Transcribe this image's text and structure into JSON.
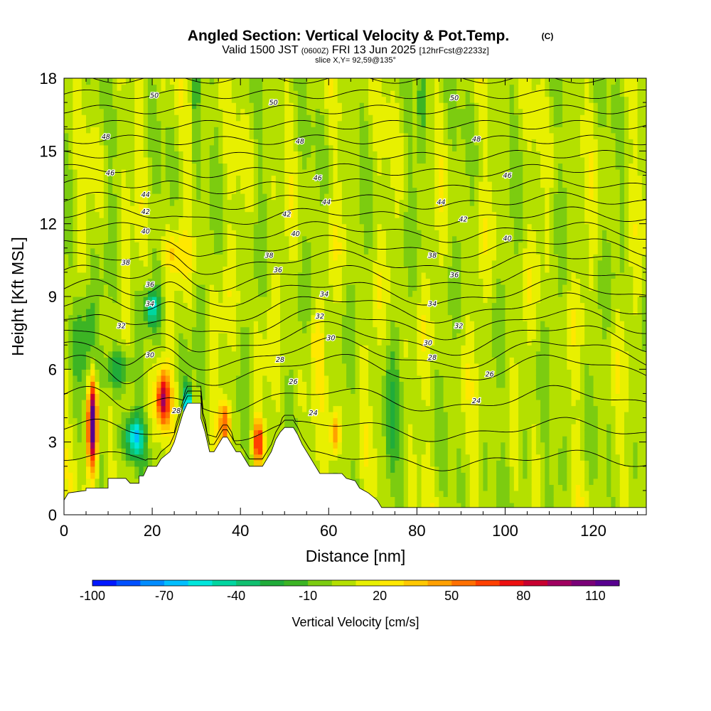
{
  "colors": {
    "palette": [
      "#0018ff",
      "#0050ff",
      "#008cff",
      "#00bfff",
      "#00e6dc",
      "#00d6a0",
      "#10c070",
      "#20ac3a",
      "#3cb424",
      "#7ccc10",
      "#b4e000",
      "#e8f000",
      "#ffe800",
      "#ffc800",
      "#ffa000",
      "#ff7000",
      "#ff4000",
      "#ee1010",
      "#c80030",
      "#a00060",
      "#7a0078",
      "#580090"
    ],
    "terrain": "#ffffff",
    "contour": "#000000"
  },
  "chart_data": {
    "type": "heatmap",
    "title": "Angled Section: Vertical Velocity & Pot.Temp.",
    "title_tag": "(C)",
    "subtitle_parts": [
      "Valid 1500 JST",
      "(0600Z)",
      "FRI 13 Jun 2025",
      "[12hrFcst@2233z]"
    ],
    "slice_label": "slice X,Y= 92,59@135°",
    "xlabel": "Distance [nm]",
    "ylabel": "Height [Kft MSL]",
    "xlim": [
      0,
      132
    ],
    "ylim": [
      0,
      18
    ],
    "x_ticks": [
      0,
      20,
      40,
      60,
      80,
      100,
      120
    ],
    "y_ticks": [
      0,
      3,
      6,
      9,
      12,
      15,
      18
    ],
    "colorbar": {
      "label": "Vertical Velocity [cm/s]",
      "min": -100,
      "max": 120,
      "step": 10,
      "tick_labels": [
        -100,
        -70,
        -40,
        -10,
        20,
        50,
        80,
        110
      ]
    },
    "terrain_height": [
      [
        0,
        0.6
      ],
      [
        1,
        0.9
      ],
      [
        5,
        1.0
      ],
      [
        5,
        1.1
      ],
      [
        10,
        1.1
      ],
      [
        10,
        1.5
      ],
      [
        14,
        1.5
      ],
      [
        15,
        1.3
      ],
      [
        17,
        1.3
      ],
      [
        17,
        1.6
      ],
      [
        18,
        1.6
      ],
      [
        19,
        2.0
      ],
      [
        21,
        2.0
      ],
      [
        22,
        2.3
      ],
      [
        24,
        2.6
      ],
      [
        25,
        3.0
      ],
      [
        26,
        3.6
      ],
      [
        27,
        4.2
      ],
      [
        28,
        4.6
      ],
      [
        29,
        4.6
      ],
      [
        31,
        4.6
      ],
      [
        31,
        4.0
      ],
      [
        32,
        3.4
      ],
      [
        33,
        2.6
      ],
      [
        34,
        2.6
      ],
      [
        35,
        2.9
      ],
      [
        36,
        3.2
      ],
      [
        37,
        3.2
      ],
      [
        38,
        2.9
      ],
      [
        39,
        2.6
      ],
      [
        40,
        2.6
      ],
      [
        41,
        2.3
      ],
      [
        42,
        2.0
      ],
      [
        44,
        2.0
      ],
      [
        45,
        2.0
      ],
      [
        46,
        2.3
      ],
      [
        47,
        2.6
      ],
      [
        48,
        3.1
      ],
      [
        49,
        3.4
      ],
      [
        50,
        3.6
      ],
      [
        52,
        3.6
      ],
      [
        53,
        3.3
      ],
      [
        54,
        2.9
      ],
      [
        55,
        2.6
      ],
      [
        56,
        2.3
      ],
      [
        57,
        2.0
      ],
      [
        58,
        1.7
      ],
      [
        60,
        1.7
      ],
      [
        61,
        1.7
      ],
      [
        62,
        1.7
      ],
      [
        63,
        1.7
      ],
      [
        64,
        1.5
      ],
      [
        66,
        1.4
      ],
      [
        67,
        1.1
      ],
      [
        69,
        0.9
      ],
      [
        71,
        0.6
      ],
      [
        72,
        0.3
      ],
      [
        132,
        0.3
      ]
    ],
    "theta_contour_labels": [
      {
        "value": 50,
        "at": [
          [
            20.5,
            17.3
          ],
          [
            47.5,
            17.0
          ],
          [
            88.5,
            17.2
          ]
        ]
      },
      {
        "value": 48,
        "at": [
          [
            9.5,
            15.6
          ],
          [
            53.5,
            15.4
          ],
          [
            93.5,
            15.5
          ]
        ]
      },
      {
        "value": 46,
        "at": [
          [
            10.5,
            14.1
          ],
          [
            57.5,
            13.9
          ],
          [
            100.5,
            14.0
          ]
        ]
      },
      {
        "value": 44,
        "at": [
          [
            18.5,
            13.2
          ],
          [
            59.5,
            12.9
          ],
          [
            85.5,
            12.9
          ]
        ]
      },
      {
        "value": 42,
        "at": [
          [
            18.5,
            12.5
          ],
          [
            50.5,
            12.4
          ],
          [
            90.5,
            12.2
          ]
        ]
      },
      {
        "value": 40,
        "at": [
          [
            18.5,
            11.7
          ],
          [
            52.5,
            11.6
          ],
          [
            100.5,
            11.4
          ]
        ]
      },
      {
        "value": 38,
        "at": [
          [
            14.0,
            10.4
          ],
          [
            46.5,
            10.7
          ],
          [
            83.5,
            10.7
          ]
        ]
      },
      {
        "value": 36,
        "at": [
          [
            19.5,
            9.5
          ],
          [
            48.5,
            10.1
          ],
          [
            88.5,
            9.9
          ]
        ]
      },
      {
        "value": 34,
        "at": [
          [
            19.5,
            8.7
          ],
          [
            59.0,
            9.1
          ],
          [
            83.5,
            8.7
          ]
        ]
      },
      {
        "value": 32,
        "at": [
          [
            13.0,
            7.8
          ],
          [
            58.0,
            8.2
          ],
          [
            89.5,
            7.8
          ]
        ]
      },
      {
        "value": 30,
        "at": [
          [
            19.5,
            6.6
          ],
          [
            60.5,
            7.3
          ],
          [
            82.5,
            7.1
          ]
        ]
      },
      {
        "value": 28,
        "at": [
          [
            49.0,
            6.4
          ],
          [
            83.5,
            6.5
          ],
          [
            25.5,
            4.3
          ]
        ]
      },
      {
        "value": 26,
        "at": [
          [
            52.0,
            5.5
          ],
          [
            96.5,
            5.8
          ]
        ]
      },
      {
        "value": 24,
        "at": [
          [
            56.5,
            4.2
          ],
          [
            93.5,
            4.7
          ]
        ]
      }
    ],
    "theta_levels": [
      23,
      24,
      25,
      26,
      27,
      28,
      29,
      30,
      31,
      32,
      33,
      34,
      35,
      36,
      37,
      38,
      39,
      40,
      41,
      42,
      43,
      44,
      45,
      46,
      47,
      48,
      49,
      50,
      51
    ]
  }
}
